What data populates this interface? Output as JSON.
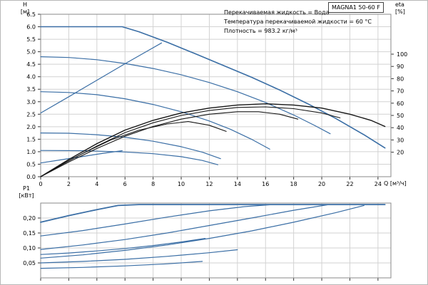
{
  "axis_labels": {
    "h": "H",
    "h_unit": "[м]",
    "eta": "eta",
    "eta_unit": "[%]",
    "q": "Q [м³/ч]",
    "p1": "P1",
    "p1_unit": "[кВт]"
  },
  "info_lines": [
    "Перекачиваемая жидкость = Вода",
    "Температура перекачиваемой жидкости = 60 °C",
    "Плотность = 983.2 кг/м³"
  ],
  "colors": {
    "curve_blue": "#3a6ea5",
    "curve_black": "#161616",
    "grid": "#d2d2d2",
    "plot_border": "#8a8a8a",
    "tick": "#333333"
  },
  "chart_data": [
    {
      "type": "line",
      "title": "MAGNA1 50-60 F",
      "xlabel": "Q [м³/ч]",
      "ylabel_left": "H [м]",
      "ylabel_right": "eta [%]",
      "xlim": [
        0,
        24.92
      ],
      "ylim_left": [
        0,
        6.5
      ],
      "ylim_right": [
        0,
        130
      ],
      "grid": true,
      "legend": "none",
      "x_ticks": [
        {
          "v": 0,
          "label": "0"
        },
        {
          "v": 2,
          "label": "2"
        },
        {
          "v": 4,
          "label": "4"
        },
        {
          "v": 6,
          "label": "6"
        },
        {
          "v": 8,
          "label": "8"
        },
        {
          "v": 10,
          "label": "10"
        },
        {
          "v": 12,
          "label": "12"
        },
        {
          "v": 14,
          "label": "14"
        },
        {
          "v": 16,
          "label": "16"
        },
        {
          "v": 18,
          "label": "18"
        },
        {
          "v": 20,
          "label": "20"
        },
        {
          "v": 22,
          "label": "22"
        },
        {
          "v": 24,
          "label": "24"
        }
      ],
      "y_ticks_left": [
        {
          "v": 0,
          "label": "0.0"
        },
        {
          "v": 0.5,
          "label": "0.5"
        },
        {
          "v": 1,
          "label": "1.0"
        },
        {
          "v": 1.5,
          "label": "1.5"
        },
        {
          "v": 2,
          "label": "2.0"
        },
        {
          "v": 2.5,
          "label": "2.5"
        },
        {
          "v": 3,
          "label": "3.0"
        },
        {
          "v": 3.5,
          "label": "3.5"
        },
        {
          "v": 4,
          "label": "4.0"
        },
        {
          "v": 4.5,
          "label": "4.5"
        },
        {
          "v": 5,
          "label": "5.0"
        },
        {
          "v": 5.5,
          "label": "5.5"
        },
        {
          "v": 6,
          "label": "6.0"
        },
        {
          "v": 6.5,
          "label": "6.5"
        }
      ],
      "y_ticks_right": [
        {
          "v": 20,
          "label": "20"
        },
        {
          "v": 30,
          "label": "30"
        },
        {
          "v": 40,
          "label": "40"
        },
        {
          "v": 50,
          "label": "50"
        },
        {
          "v": 60,
          "label": "60"
        },
        {
          "v": 70,
          "label": "70"
        },
        {
          "v": 80,
          "label": "80"
        },
        {
          "v": 90,
          "label": "90"
        },
        {
          "v": 100,
          "label": "100"
        }
      ],
      "series": [
        {
          "name": "head-curve-max-speed",
          "axis": "left",
          "color": "#3a6ea5",
          "width": 1.6,
          "points": [
            [
              0,
              6.0
            ],
            [
              2,
              6.0
            ],
            [
              4,
              6.0
            ],
            [
              5.8,
              6.0
            ],
            [
              7,
              5.8
            ],
            [
              9,
              5.38
            ],
            [
              11,
              4.92
            ],
            [
              13,
              4.45
            ],
            [
              15,
              3.98
            ],
            [
              17,
              3.47
            ],
            [
              19,
              2.92
            ],
            [
              21,
              2.33
            ],
            [
              23,
              1.68
            ],
            [
              24.5,
              1.15
            ]
          ]
        },
        {
          "name": "head-curve-speed-2",
          "axis": "left",
          "color": "#3a6ea5",
          "width": 1.2,
          "points": [
            [
              0,
              4.8
            ],
            [
              2,
              4.77
            ],
            [
              4,
              4.68
            ],
            [
              6,
              4.53
            ],
            [
              8,
              4.33
            ],
            [
              10,
              4.08
            ],
            [
              12,
              3.77
            ],
            [
              14,
              3.4
            ],
            [
              16,
              2.97
            ],
            [
              18,
              2.47
            ],
            [
              19.5,
              2.05
            ],
            [
              20.6,
              1.72
            ]
          ]
        },
        {
          "name": "head-curve-speed-1",
          "axis": "left",
          "color": "#3a6ea5",
          "width": 1.2,
          "points": [
            [
              0,
              3.4
            ],
            [
              2,
              3.37
            ],
            [
              4,
              3.28
            ],
            [
              6,
              3.12
            ],
            [
              8,
              2.89
            ],
            [
              10,
              2.6
            ],
            [
              12,
              2.23
            ],
            [
              13.5,
              1.9
            ],
            [
              15,
              1.5
            ],
            [
              16.3,
              1.1
            ]
          ]
        },
        {
          "name": "proportional-pressure-max-line",
          "axis": "left",
          "color": "#3a6ea5",
          "width": 1.2,
          "points": [
            [
              0,
              2.55
            ],
            [
              2,
              3.2
            ],
            [
              4,
              3.86
            ],
            [
              6,
              4.52
            ],
            [
              7.5,
              5.0
            ],
            [
              8.6,
              5.35
            ]
          ]
        },
        {
          "name": "head-curve-min-speed",
          "axis": "left",
          "color": "#3a6ea5",
          "width": 1.2,
          "points": [
            [
              0,
              1.75
            ],
            [
              2,
              1.74
            ],
            [
              4,
              1.68
            ],
            [
              6,
              1.58
            ],
            [
              8,
              1.42
            ],
            [
              10,
              1.2
            ],
            [
              11.5,
              0.98
            ],
            [
              12.8,
              0.72
            ]
          ]
        },
        {
          "name": "constant-pressure-low-line",
          "axis": "left",
          "color": "#3a6ea5",
          "width": 1.2,
          "points": [
            [
              0,
              1.05
            ],
            [
              3,
              1.04
            ],
            [
              6,
              0.99
            ],
            [
              8,
              0.92
            ],
            [
              10,
              0.8
            ],
            [
              11.5,
              0.65
            ],
            [
              12.6,
              0.48
            ]
          ]
        },
        {
          "name": "proportional-pressure-min-line",
          "axis": "left",
          "color": "#3a6ea5",
          "width": 1.2,
          "points": [
            [
              0,
              0.55
            ],
            [
              1.5,
              0.68
            ],
            [
              3,
              0.81
            ],
            [
              4.5,
              0.94
            ],
            [
              5.8,
              1.04
            ]
          ]
        },
        {
          "name": "efficiency-curve-max-speed",
          "axis": "right",
          "color": "#161616",
          "width": 1.4,
          "points": [
            [
              0,
              0
            ],
            [
              2,
              14
            ],
            [
              4,
              27
            ],
            [
              6,
              38
            ],
            [
              8,
              46
            ],
            [
              10,
              52
            ],
            [
              12,
              56
            ],
            [
              14,
              58.5
            ],
            [
              16,
              59.5
            ],
            [
              18,
              58.5
            ],
            [
              20,
              56
            ],
            [
              22,
              51
            ],
            [
              23.5,
              46
            ],
            [
              24.5,
              41
            ]
          ]
        },
        {
          "name": "efficiency-curve-2",
          "axis": "right",
          "color": "#161616",
          "width": 1.1,
          "points": [
            [
              0,
              0
            ],
            [
              2,
              13
            ],
            [
              4,
              25
            ],
            [
              6,
              36
            ],
            [
              8,
              44
            ],
            [
              10,
              50
            ],
            [
              12,
              54
            ],
            [
              14,
              56.5
            ],
            [
              16,
              57
            ],
            [
              18,
              55.5
            ],
            [
              20,
              52
            ],
            [
              21.3,
              48
            ]
          ]
        },
        {
          "name": "efficiency-curve-3",
          "axis": "right",
          "color": "#161616",
          "width": 1.1,
          "points": [
            [
              0,
              0
            ],
            [
              2,
              12
            ],
            [
              4,
              23
            ],
            [
              6,
              33
            ],
            [
              8,
              41
            ],
            [
              10,
              47
            ],
            [
              12,
              51
            ],
            [
              14,
              53
            ],
            [
              15.5,
              53
            ],
            [
              17,
              51
            ],
            [
              18.3,
              47
            ]
          ]
        },
        {
          "name": "efficiency-curve-4",
          "axis": "right",
          "color": "#161616",
          "width": 1.1,
          "points": [
            [
              0,
              0
            ],
            [
              1.5,
              10
            ],
            [
              3,
              19
            ],
            [
              5,
              30
            ],
            [
              7,
              38
            ],
            [
              9,
              43
            ],
            [
              10.5,
              45
            ],
            [
              12,
              42
            ],
            [
              13.2,
              37
            ]
          ]
        }
      ]
    },
    {
      "type": "line",
      "title": "",
      "xlabel": "",
      "ylabel": "P1 [кВт]",
      "xlim": [
        0,
        24.92
      ],
      "ylim": [
        0,
        0.25
      ],
      "grid": true,
      "legend": "none",
      "x_ticks": [
        {
          "v": 0
        },
        {
          "v": 2
        },
        {
          "v": 4
        },
        {
          "v": 6
        },
        {
          "v": 8
        },
        {
          "v": 10
        },
        {
          "v": 12
        },
        {
          "v": 14
        },
        {
          "v": 16
        },
        {
          "v": 18
        },
        {
          "v": 20
        },
        {
          "v": 22
        },
        {
          "v": 24
        }
      ],
      "y_ticks": [
        {
          "v": 0.05,
          "label": "0,05"
        },
        {
          "v": 0.1,
          "label": "0,10"
        },
        {
          "v": 0.15,
          "label": "0,15"
        },
        {
          "v": 0.2,
          "label": "0,20"
        }
      ],
      "series": [
        {
          "name": "power-curve-max-speed",
          "color": "#3a6ea5",
          "width": 1.8,
          "points": [
            [
              0,
              0.186
            ],
            [
              2,
              0.208
            ],
            [
              4,
              0.228
            ],
            [
              5.5,
              0.242
            ],
            [
              7,
              0.245
            ],
            [
              24.5,
              0.245
            ]
          ]
        },
        {
          "name": "power-curve-2",
          "color": "#3a6ea5",
          "width": 1.2,
          "points": [
            [
              0,
              0.14
            ],
            [
              3,
              0.158
            ],
            [
              6,
              0.18
            ],
            [
              9,
              0.203
            ],
            [
              12,
              0.224
            ],
            [
              14.5,
              0.238
            ],
            [
              16.5,
              0.245
            ]
          ]
        },
        {
          "name": "power-curve-3",
          "color": "#3a6ea5",
          "width": 1.2,
          "points": [
            [
              0,
              0.095
            ],
            [
              3,
              0.11
            ],
            [
              6,
              0.128
            ],
            [
              9,
              0.15
            ],
            [
              12,
              0.175
            ],
            [
              15,
              0.2
            ],
            [
              18,
              0.226
            ],
            [
              20.5,
              0.245
            ]
          ]
        },
        {
          "name": "power-curve-4",
          "color": "#3a6ea5",
          "width": 1.2,
          "points": [
            [
              0,
              0.066
            ],
            [
              3,
              0.077
            ],
            [
              6,
              0.092
            ],
            [
              9,
              0.11
            ],
            [
              12,
              0.132
            ],
            [
              15,
              0.157
            ],
            [
              18,
              0.186
            ],
            [
              21,
              0.218
            ],
            [
              23,
              0.242
            ]
          ]
        },
        {
          "name": "power-curve-5",
          "color": "#3a6ea5",
          "width": 1.2,
          "points": [
            [
              0,
              0.078
            ],
            [
              2,
              0.083
            ],
            [
              4,
              0.09
            ],
            [
              6,
              0.098
            ],
            [
              8,
              0.108
            ],
            [
              10,
              0.12
            ],
            [
              11.7,
              0.132
            ]
          ]
        },
        {
          "name": "power-curve-min",
          "color": "#3a6ea5",
          "width": 1.2,
          "points": [
            [
              0,
              0.05
            ],
            [
              3,
              0.055
            ],
            [
              6,
              0.062
            ],
            [
              9,
              0.072
            ],
            [
              12,
              0.084
            ],
            [
              14,
              0.094
            ]
          ]
        },
        {
          "name": "power-curve-low",
          "color": "#3a6ea5",
          "width": 1.2,
          "points": [
            [
              0,
              0.032
            ],
            [
              3,
              0.035
            ],
            [
              6,
              0.04
            ],
            [
              9,
              0.047
            ],
            [
              11.5,
              0.055
            ]
          ]
        }
      ]
    }
  ]
}
